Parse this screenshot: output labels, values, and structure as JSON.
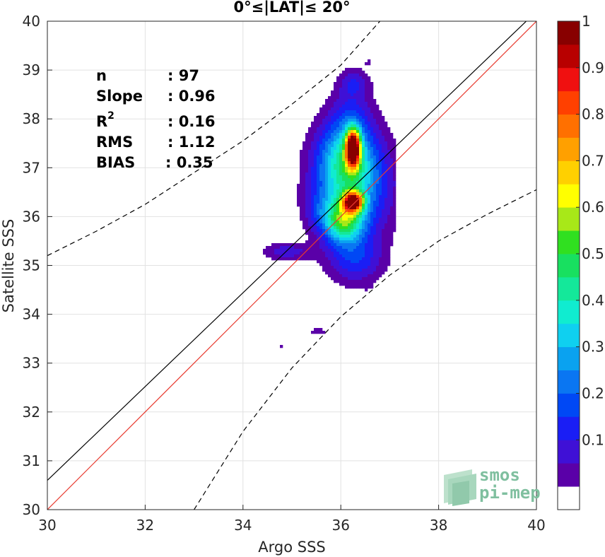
{
  "chart_data": {
    "type": "heatmap",
    "title": "0°≤|LAT|≤ 20°",
    "xlabel": "Argo SSS",
    "ylabel": "Satellite SSS",
    "xlim": [
      30,
      40
    ],
    "ylim": [
      30,
      40
    ],
    "x_ticks": [
      "30",
      "32",
      "34",
      "36",
      "38",
      "40"
    ],
    "y_ticks": [
      "30",
      "31",
      "32",
      "33",
      "34",
      "35",
      "36",
      "37",
      "38",
      "39",
      "40"
    ],
    "grid": true,
    "stats": [
      {
        "label": "n",
        "value": ": 97"
      },
      {
        "label": "Slope",
        "value": ": 0.96"
      },
      {
        "label": "R",
        "sup": "2",
        "value": ": 0.16"
      },
      {
        "label": "RMS",
        "value": ": 1.12"
      },
      {
        "label": "BIAS",
        "value": ": 0.35"
      }
    ],
    "lines": [
      {
        "name": "one-to-one",
        "color": "#e8392e",
        "points": [
          [
            30,
            30
          ],
          [
            40,
            40
          ]
        ]
      },
      {
        "name": "regression",
        "color": "#000000",
        "points": [
          [
            30,
            30.6
          ],
          [
            40,
            40.2
          ]
        ]
      },
      {
        "name": "upper-bound",
        "color": "#000000",
        "dashed": true,
        "points": [
          [
            30,
            35.2
          ],
          [
            31,
            35.7
          ],
          [
            32,
            36.25
          ],
          [
            33,
            36.9
          ],
          [
            34,
            37.55
          ],
          [
            35,
            38.3
          ],
          [
            36,
            39.1
          ],
          [
            36.8,
            40
          ]
        ]
      },
      {
        "name": "lower-bound",
        "color": "#000000",
        "dashed": true,
        "points": [
          [
            33,
            30
          ],
          [
            34,
            31.6
          ],
          [
            35,
            32.9
          ],
          [
            36,
            33.95
          ],
          [
            37,
            34.8
          ],
          [
            38,
            35.5
          ],
          [
            39,
            36.05
          ],
          [
            40,
            36.55
          ]
        ]
      }
    ],
    "density_peaks": [
      {
        "x": 36.23,
        "y": 37.45,
        "level": 1.0
      },
      {
        "x": 36.22,
        "y": 36.27,
        "level": 0.98
      },
      {
        "x": 36.05,
        "y": 35.9,
        "level": 0.5
      },
      {
        "x": 34.85,
        "y": 35.3,
        "level": 0.15
      }
    ],
    "contour_levels": [
      0.05,
      0.1,
      0.15,
      0.2,
      0.25,
      0.3,
      0.35,
      0.4,
      0.45,
      0.5,
      0.55,
      0.6,
      0.65,
      0.7,
      0.75,
      0.8,
      0.85,
      0.9,
      0.95
    ],
    "colorbar": {
      "ticks": [
        "0.1",
        "0.2",
        "0.3",
        "0.4",
        "0.5",
        "0.6",
        "0.7",
        "0.8",
        "0.9",
        "1"
      ],
      "range": [
        0,
        1
      ],
      "colors": [
        "#ffffff",
        "#5a00a8",
        "#3f10d6",
        "#1a1ef5",
        "#0048f5",
        "#0a76f2",
        "#0aa2f0",
        "#0fd0f0",
        "#10ecd0",
        "#14e89a",
        "#18e060",
        "#30e020",
        "#a8e818",
        "#ffff00",
        "#ffd000",
        "#ffa000",
        "#ff7000",
        "#ff4000",
        "#f01010",
        "#b80000",
        "#880000"
      ]
    },
    "logo": {
      "line1": "smos",
      "line2": "pi-mep",
      "color": "#7fbf9f"
    }
  }
}
